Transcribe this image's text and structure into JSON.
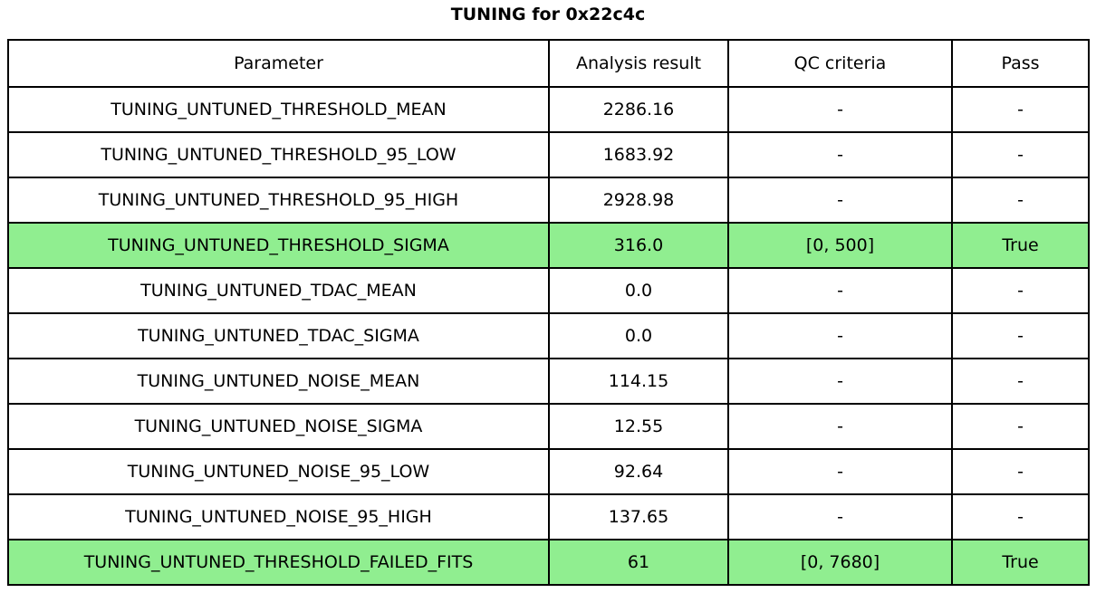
{
  "title": "TUNING for 0x22c4c",
  "chart_data": {
    "type": "table",
    "title": "TUNING for 0x22c4c",
    "columns": [
      "Parameter",
      "Analysis result",
      "QC criteria",
      "Pass"
    ],
    "rows": [
      {
        "cells": [
          "TUNING_UNTUNED_THRESHOLD_MEAN",
          "2286.16",
          "-",
          "-"
        ],
        "highlight": false
      },
      {
        "cells": [
          "TUNING_UNTUNED_THRESHOLD_95_LOW",
          "1683.92",
          "-",
          "-"
        ],
        "highlight": false
      },
      {
        "cells": [
          "TUNING_UNTUNED_THRESHOLD_95_HIGH",
          "2928.98",
          "-",
          "-"
        ],
        "highlight": false
      },
      {
        "cells": [
          "TUNING_UNTUNED_THRESHOLD_SIGMA",
          "316.0",
          "[0, 500]",
          "True"
        ],
        "highlight": true
      },
      {
        "cells": [
          "TUNING_UNTUNED_TDAC_MEAN",
          "0.0",
          "-",
          "-"
        ],
        "highlight": false
      },
      {
        "cells": [
          "TUNING_UNTUNED_TDAC_SIGMA",
          "0.0",
          "-",
          "-"
        ],
        "highlight": false
      },
      {
        "cells": [
          "TUNING_UNTUNED_NOISE_MEAN",
          "114.15",
          "-",
          "-"
        ],
        "highlight": false
      },
      {
        "cells": [
          "TUNING_UNTUNED_NOISE_SIGMA",
          "12.55",
          "-",
          "-"
        ],
        "highlight": false
      },
      {
        "cells": [
          "TUNING_UNTUNED_NOISE_95_LOW",
          "92.64",
          "-",
          "-"
        ],
        "highlight": false
      },
      {
        "cells": [
          "TUNING_UNTUNED_NOISE_95_HIGH",
          "137.65",
          "-",
          "-"
        ],
        "highlight": false
      },
      {
        "cells": [
          "TUNING_UNTUNED_THRESHOLD_FAILED_FITS",
          "61",
          "[0, 7680]",
          "True"
        ],
        "highlight": true
      }
    ],
    "highlight_color": "#90ee90",
    "border_color": "#000000",
    "text_color": "#000000",
    "legend_position": "none",
    "grid": true
  }
}
